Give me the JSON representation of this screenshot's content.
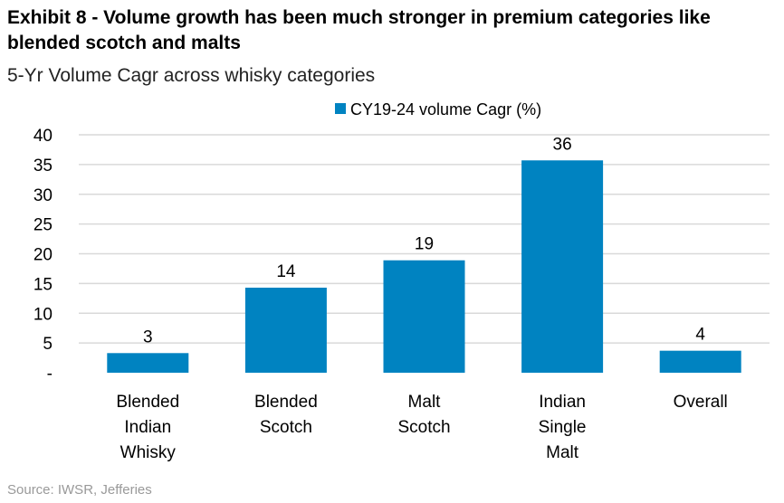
{
  "chart_data": {
    "type": "bar",
    "title": "Exhibit 8 - Volume growth has been much stronger in premium categories like blended scotch and malts",
    "subtitle": "5-Yr Volume Cagr across whisky categories",
    "categories": [
      [
        "Blended",
        "Indian",
        "Whisky"
      ],
      [
        "Blended",
        "Scotch"
      ],
      [
        "Malt",
        "Scotch"
      ],
      [
        "Indian",
        "Single",
        "Malt"
      ],
      [
        "Overall"
      ]
    ],
    "series": [
      {
        "name": "CY19-24 volume Cagr (%)",
        "values": [
          3.3,
          14.3,
          18.9,
          35.7,
          3.7
        ],
        "labels": [
          "3",
          "14",
          "19",
          "36",
          "4"
        ],
        "color": "#0083C1"
      }
    ],
    "yticks": [
      0,
      5,
      10,
      15,
      20,
      25,
      30,
      35,
      40
    ],
    "ytick_labels": [
      "-",
      "5",
      "10",
      "15",
      "20",
      "25",
      "30",
      "35",
      "40"
    ],
    "ylim": [
      0,
      40
    ],
    "xlabel": "",
    "ylabel": "",
    "grid": true,
    "legend": "top-center",
    "source": "Source: IWSR, Jefferies"
  }
}
